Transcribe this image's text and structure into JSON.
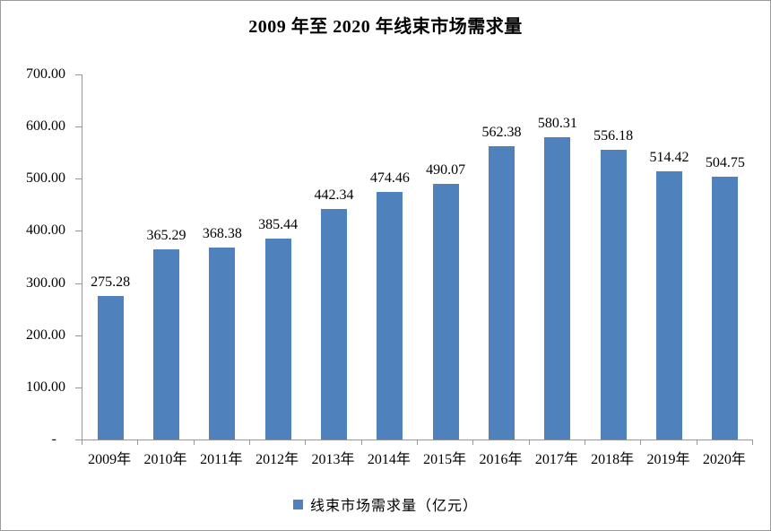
{
  "chart_data": {
    "type": "bar",
    "title": "2009 年至 2020 年线束市场需求量",
    "categories": [
      "2009年",
      "2010年",
      "2011年",
      "2012年",
      "2013年",
      "2014年",
      "2015年",
      "2016年",
      "2017年",
      "2018年",
      "2019年",
      "2020年"
    ],
    "series": [
      {
        "name": "线束市场需求量（亿元）",
        "values": [
          275.28,
          365.29,
          368.38,
          385.44,
          442.34,
          474.46,
          490.07,
          562.38,
          580.31,
          556.18,
          514.42,
          504.75
        ]
      }
    ],
    "value_label_decimals": 2,
    "ylim": [
      0,
      700
    ],
    "ytick_step": 100,
    "ytick_labels_top_to_bottom": [
      "700.00",
      "600.00",
      "500.00",
      "400.00",
      "300.00",
      "200.00",
      "100.00",
      "-"
    ],
    "grid": false,
    "legend_position": "bottom",
    "colors": {
      "bar": "#4F81BD",
      "axis": "#969696",
      "text": "#000000",
      "frame_border": "#9A9A9A",
      "background": "#FFFFFF"
    }
  }
}
